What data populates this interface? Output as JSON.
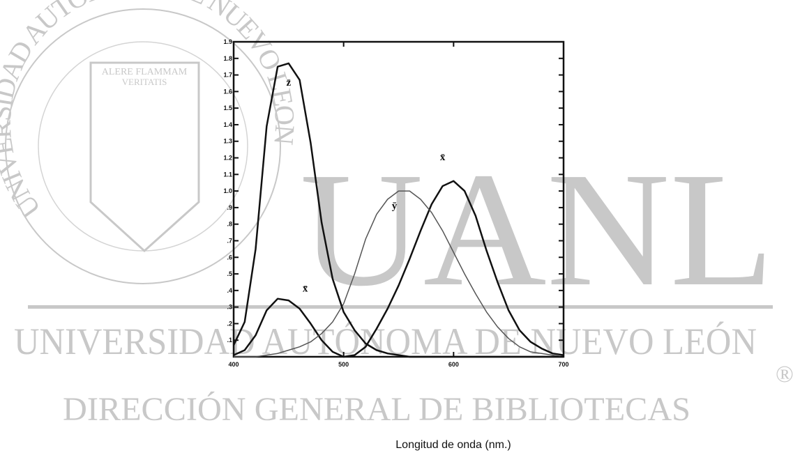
{
  "chart_data": {
    "type": "line",
    "xlabel": "Longitud de onda (nm.)",
    "x": [
      400,
      410,
      420,
      430,
      440,
      450,
      460,
      470,
      480,
      490,
      500,
      510,
      520,
      530,
      540,
      550,
      560,
      570,
      580,
      590,
      600,
      610,
      620,
      630,
      640,
      650,
      660,
      670,
      680,
      690,
      700
    ],
    "series": [
      {
        "name": "x̄",
        "color": "#111111",
        "values": [
          0.01,
          0.04,
          0.13,
          0.28,
          0.35,
          0.34,
          0.29,
          0.2,
          0.1,
          0.03,
          0.0,
          0.01,
          0.06,
          0.17,
          0.29,
          0.43,
          0.59,
          0.76,
          0.92,
          1.03,
          1.06,
          1.0,
          0.85,
          0.64,
          0.45,
          0.28,
          0.16,
          0.09,
          0.05,
          0.02,
          0.01
        ]
      },
      {
        "name": "ȳ",
        "color": "#555555",
        "values": [
          0.0,
          0.0,
          0.0,
          0.01,
          0.02,
          0.04,
          0.06,
          0.09,
          0.14,
          0.21,
          0.32,
          0.5,
          0.71,
          0.86,
          0.95,
          1.0,
          1.0,
          0.95,
          0.87,
          0.76,
          0.63,
          0.5,
          0.38,
          0.27,
          0.18,
          0.11,
          0.06,
          0.03,
          0.02,
          0.01,
          0.0
        ]
      },
      {
        "name": "z̄",
        "color": "#111111",
        "values": [
          0.07,
          0.21,
          0.65,
          1.39,
          1.75,
          1.77,
          1.67,
          1.29,
          0.81,
          0.47,
          0.27,
          0.16,
          0.08,
          0.04,
          0.02,
          0.01,
          0.0,
          0.0,
          0.0,
          0.0,
          0.0,
          0.0,
          0.0,
          0.0,
          0.0,
          0.0,
          0.0,
          0.0,
          0.0,
          0.0,
          0.0
        ]
      }
    ],
    "xlim": [
      400,
      700
    ],
    "xticks": [
      400,
      500,
      600,
      700
    ],
    "ylim": [
      0,
      1.9
    ],
    "yticks": [
      {
        "value": 0.1,
        "label": ".1"
      },
      {
        "value": 0.2,
        "label": ".2"
      },
      {
        "value": 0.3,
        "label": ".3"
      },
      {
        "value": 0.4,
        "label": ".4"
      },
      {
        "value": 0.5,
        "label": ".5"
      },
      {
        "value": 0.6,
        "label": ".6"
      },
      {
        "value": 0.7,
        "label": ".7"
      },
      {
        "value": 0.8,
        "label": ".8"
      },
      {
        "value": 0.9,
        "label": ".9"
      },
      {
        "value": 1.0,
        "label": "1.0"
      },
      1.1,
      1.2,
      1.3,
      1.4,
      1.5,
      1.6,
      1.7,
      1.8,
      1.9
    ]
  },
  "watermark": {
    "seal_ring": "UNIVERSIDAD AUTONOMA DE NUEVO LEON",
    "motto_1": "ALERE FLAMMAM",
    "motto_2": "VERITATIS",
    "logo": "UANL",
    "university": "UNIVERSIDAD AUTÓNOMA DE NUEVO LEÓN",
    "registered": "®",
    "department": "DIRECCIÓN GENERAL DE BIBLIOTECAS"
  }
}
